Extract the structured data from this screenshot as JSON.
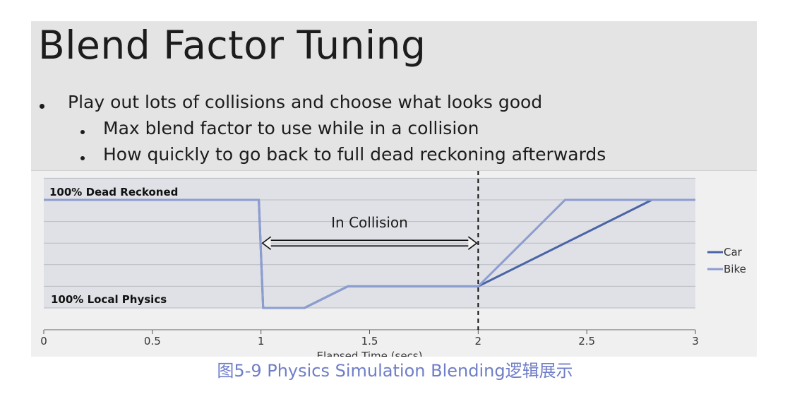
{
  "slide": {
    "title": "Blend Factor Tuning",
    "bullets": [
      {
        "level": 1,
        "text": "Play out lots of collisions and choose what looks good"
      },
      {
        "level": 2,
        "text": "Max blend factor to use while in a collision"
      },
      {
        "level": 2,
        "text": "How quickly to go back to full dead reckoning afterwards"
      }
    ]
  },
  "chart_data": {
    "type": "line",
    "xlabel": "Elapsed Time (secs)",
    "ylabel": "",
    "xlim": [
      0,
      3
    ],
    "ylim": [
      0,
      1
    ],
    "xticks": [
      0,
      0.5,
      1,
      1.5,
      2,
      2.5,
      3
    ],
    "xtick_labels": [
      "0",
      "0.5",
      "1",
      "1.5",
      "2",
      "2.5",
      "3"
    ],
    "y_annotations": {
      "top": "100% Dead Reckoned",
      "bottom": "100% Local Physics"
    },
    "grid": "horizontal",
    "legend_position": "right",
    "series": [
      {
        "name": "Car",
        "color": "#4a64a6",
        "points": [
          [
            0,
            1
          ],
          [
            0.99,
            1
          ],
          [
            1.01,
            0
          ],
          [
            1.2,
            0
          ],
          [
            1.4,
            0.2
          ],
          [
            2.0,
            0.2
          ],
          [
            2.8,
            1
          ],
          [
            3,
            1
          ]
        ]
      },
      {
        "name": "Bike",
        "color": "#8c9dd0",
        "points": [
          [
            0,
            1
          ],
          [
            0.99,
            1
          ],
          [
            1.01,
            0
          ],
          [
            1.2,
            0
          ],
          [
            1.4,
            0.2
          ],
          [
            2.0,
            0.2
          ],
          [
            2.4,
            1
          ],
          [
            3,
            1
          ]
        ]
      }
    ],
    "annotations": [
      {
        "text": "In Collision",
        "x_start": 1,
        "x_end": 2
      }
    ],
    "vertical_marker_x": 2
  },
  "caption": "图5-9 Physics Simulation Blending逻辑展示"
}
